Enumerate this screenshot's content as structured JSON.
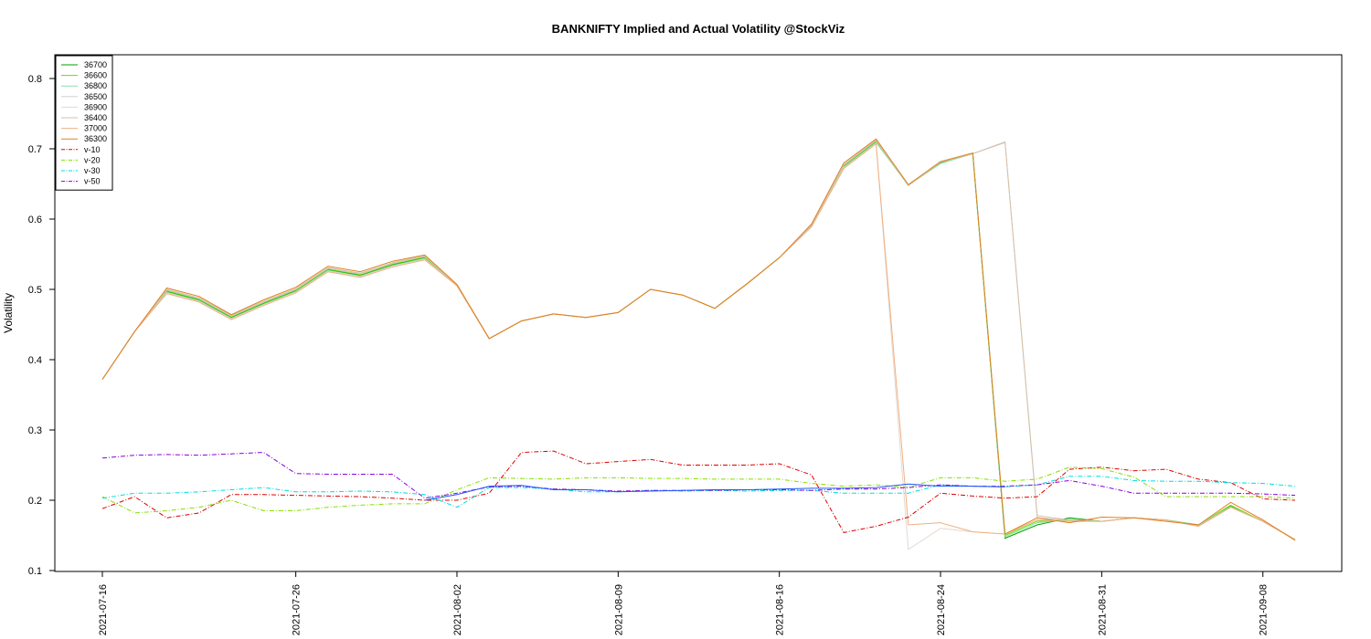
{
  "chart_data": {
    "type": "line",
    "title": "BANKNIFTY Implied and Actual Volatility @StockViz",
    "ylabel": "Volatility",
    "xlabel": "",
    "ylim": [
      0.1,
      0.83
    ],
    "yticks": [
      "0.1",
      "0.2",
      "0.3",
      "0.4",
      "0.5",
      "0.6",
      "0.7",
      "0.8"
    ],
    "xtick_labels": [
      "2021-07-16",
      "2021-07-26",
      "2021-08-02",
      "2021-08-09",
      "2021-08-16",
      "2021-08-24",
      "2021-08-31",
      "2021-09-08"
    ],
    "xtick_index": [
      0,
      6,
      11,
      16,
      21,
      26,
      31,
      36
    ],
    "legend_position": "top-left",
    "grid": false,
    "x_count": 38,
    "series": [
      {
        "name": "36700",
        "color": "#00a000",
        "dash": "",
        "values": [
          0.372,
          0.44,
          0.497,
          0.485,
          0.46,
          0.48,
          0.498,
          0.528,
          0.52,
          0.535,
          0.545,
          0.505,
          0.43,
          0.455,
          0.465,
          0.46,
          0.467,
          0.5,
          0.492,
          0.473,
          0.508,
          0.545,
          0.59,
          0.675,
          0.71,
          0.648,
          0.68,
          0.693,
          0.146,
          0.165,
          0.175,
          0.17,
          0.175,
          0.172,
          0.165,
          0.192,
          0.17,
          0.144
        ]
      },
      {
        "name": "36600",
        "color": "#66dd00",
        "dash": "",
        "values": [
          0.372,
          0.44,
          0.498,
          0.486,
          0.461,
          0.481,
          0.499,
          0.529,
          0.521,
          0.536,
          0.546,
          0.506,
          0.43,
          0.455,
          0.465,
          0.46,
          0.467,
          0.5,
          0.492,
          0.473,
          0.508,
          0.545,
          0.591,
          0.676,
          0.711,
          0.648,
          0.681,
          0.693,
          0.15,
          0.17,
          0.172,
          0.17,
          0.175,
          0.172,
          0.165,
          0.193,
          0.17,
          0.144
        ]
      },
      {
        "name": "36800",
        "color": "#88e0a0",
        "dash": "",
        "values": [
          0.372,
          0.44,
          0.496,
          0.484,
          0.459,
          0.479,
          0.497,
          0.527,
          0.519,
          0.534,
          0.544,
          0.505,
          0.43,
          0.455,
          0.465,
          0.46,
          0.467,
          0.5,
          0.492,
          0.473,
          0.508,
          0.545,
          0.59,
          0.674,
          0.709,
          0.648,
          0.679,
          0.693,
          0.148,
          0.168,
          0.173,
          0.17,
          0.175,
          0.172,
          0.165,
          0.191,
          0.17,
          0.144
        ]
      },
      {
        "name": "36500",
        "color": "#d0d0d0",
        "dash": "",
        "values": [
          0.372,
          0.44,
          0.499,
          0.487,
          0.462,
          0.482,
          0.5,
          0.53,
          0.522,
          0.537,
          0.547,
          0.506,
          0.43,
          0.455,
          0.465,
          0.46,
          0.467,
          0.5,
          0.492,
          0.473,
          0.508,
          0.545,
          0.591,
          0.677,
          0.712,
          0.648,
          0.681,
          0.693,
          0.71,
          0.175,
          0.172,
          0.17,
          0.175,
          0.172,
          0.163,
          0.19,
          0.17,
          0.144
        ]
      },
      {
        "name": "36900",
        "color": "#e4d8d0",
        "dash": "",
        "values": [
          0.372,
          0.44,
          0.495,
          0.483,
          0.458,
          0.478,
          0.496,
          0.526,
          0.518,
          0.533,
          0.543,
          0.505,
          0.43,
          0.455,
          0.465,
          0.46,
          0.467,
          0.5,
          0.492,
          0.473,
          0.508,
          0.545,
          0.589,
          0.673,
          0.708,
          0.13,
          0.16,
          0.155,
          0.152,
          0.172,
          0.17,
          0.17,
          0.175,
          0.172,
          0.163,
          0.19,
          0.17,
          0.144
        ]
      },
      {
        "name": "36400",
        "color": "#d6c0a8",
        "dash": "",
        "values": [
          0.372,
          0.44,
          0.5,
          0.488,
          0.463,
          0.483,
          0.501,
          0.531,
          0.523,
          0.538,
          0.548,
          0.506,
          0.43,
          0.455,
          0.465,
          0.46,
          0.467,
          0.5,
          0.492,
          0.473,
          0.508,
          0.545,
          0.592,
          0.678,
          0.713,
          0.648,
          0.681,
          0.693,
          0.709,
          0.178,
          0.172,
          0.17,
          0.175,
          0.172,
          0.163,
          0.19,
          0.17,
          0.144
        ]
      },
      {
        "name": "37000",
        "color": "#f0b080",
        "dash": "",
        "values": [
          0.372,
          0.44,
          0.494,
          0.482,
          0.457,
          0.477,
          0.495,
          0.525,
          0.517,
          0.532,
          0.542,
          0.505,
          0.43,
          0.455,
          0.465,
          0.46,
          0.467,
          0.5,
          0.492,
          0.473,
          0.508,
          0.545,
          0.589,
          0.672,
          0.707,
          0.165,
          0.168,
          0.155,
          0.152,
          0.172,
          0.17,
          0.17,
          0.175,
          0.172,
          0.163,
          0.19,
          0.17,
          0.144
        ]
      },
      {
        "name": "36300",
        "color": "#e08020",
        "dash": "",
        "values": [
          0.372,
          0.44,
          0.502,
          0.49,
          0.464,
          0.485,
          0.503,
          0.533,
          0.525,
          0.54,
          0.549,
          0.507,
          0.43,
          0.455,
          0.465,
          0.46,
          0.467,
          0.5,
          0.492,
          0.473,
          0.508,
          0.545,
          0.593,
          0.68,
          0.714,
          0.649,
          0.682,
          0.694,
          0.152,
          0.175,
          0.168,
          0.176,
          0.175,
          0.17,
          0.165,
          0.197,
          0.172,
          0.143
        ]
      },
      {
        "name": "v-10",
        "color": "#dd0000",
        "dash": "5,2,1,2",
        "values": [
          0.188,
          0.205,
          0.175,
          0.182,
          0.208,
          0.208,
          0.207,
          0.206,
          0.205,
          0.203,
          0.2,
          0.2,
          0.21,
          0.268,
          0.27,
          0.252,
          0.255,
          0.258,
          0.25,
          0.25,
          0.25,
          0.252,
          0.236,
          0.154,
          0.163,
          0.176,
          0.21,
          0.206,
          0.203,
          0.205,
          0.244,
          0.247,
          0.242,
          0.244,
          0.23,
          0.225,
          0.202,
          0.2
        ]
      },
      {
        "name": "v-20",
        "color": "#88dd00",
        "dash": "5,2,1,2",
        "values": [
          0.205,
          0.182,
          0.185,
          0.19,
          0.2,
          0.185,
          0.185,
          0.19,
          0.193,
          0.195,
          0.195,
          0.215,
          0.232,
          0.231,
          0.23,
          0.232,
          0.232,
          0.231,
          0.231,
          0.23,
          0.23,
          0.23,
          0.224,
          0.22,
          0.222,
          0.218,
          0.232,
          0.232,
          0.227,
          0.23,
          0.247,
          0.245,
          0.233,
          0.205,
          0.205,
          0.205,
          0.205,
          0.203
        ]
      },
      {
        "name": "v-30",
        "color": "#00dddd",
        "dash": "5,2,1,2",
        "values": [
          0.203,
          0.21,
          0.21,
          0.212,
          0.215,
          0.218,
          0.212,
          0.212,
          0.213,
          0.212,
          0.208,
          0.19,
          0.218,
          0.218,
          0.216,
          0.212,
          0.212,
          0.214,
          0.213,
          0.214,
          0.213,
          0.214,
          0.214,
          0.21,
          0.21,
          0.21,
          0.222,
          0.22,
          0.219,
          0.222,
          0.234,
          0.234,
          0.228,
          0.227,
          0.227,
          0.225,
          0.224,
          0.22
        ]
      },
      {
        "name": "v-50",
        "color": "#8800dd",
        "dash": "5,2,1,2",
        "values": [
          0.26,
          0.264,
          0.265,
          0.264,
          0.266,
          0.268,
          0.238,
          0.237,
          0.237,
          0.237,
          0.203,
          0.21,
          0.219,
          0.22,
          0.216,
          0.215,
          0.213,
          0.214,
          0.214,
          0.214,
          0.215,
          0.215,
          0.214,
          0.216,
          0.216,
          0.218,
          0.222,
          0.22,
          0.22,
          0.222,
          0.228,
          0.22,
          0.21,
          0.21,
          0.21,
          0.21,
          0.209,
          0.207
        ]
      },
      {
        "name": "",
        "color": "#2255ff",
        "dash": "",
        "values": [
          null,
          null,
          null,
          null,
          null,
          null,
          null,
          null,
          null,
          null,
          0.2,
          0.208,
          0.22,
          0.221,
          0.215,
          0.215,
          0.212,
          0.213,
          0.214,
          0.215,
          0.215,
          0.216,
          0.217,
          0.217,
          0.218,
          0.223,
          0.22,
          0.22,
          0.219,
          null,
          null,
          null,
          null,
          null,
          null,
          null,
          null,
          null
        ]
      }
    ]
  }
}
